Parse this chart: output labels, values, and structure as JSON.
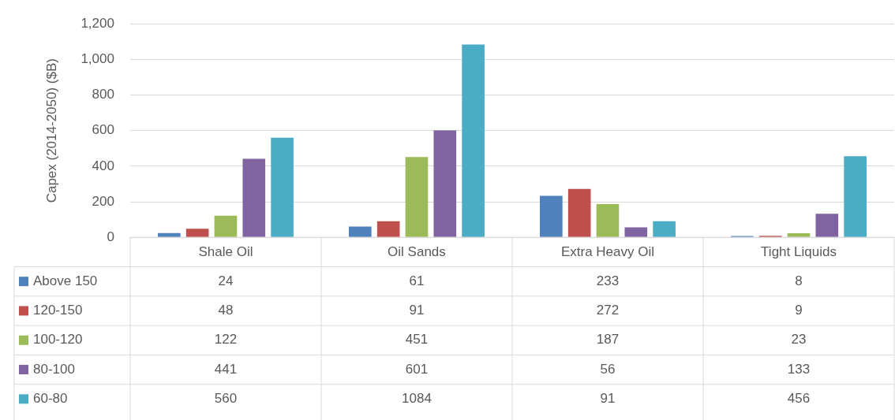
{
  "chart_data": {
    "type": "bar",
    "ylabel": "Capex (2014-2050) ($B)",
    "categories": [
      "Shale Oil",
      "Oil Sands",
      "Extra Heavy Oil",
      "Tight Liquids"
    ],
    "series": [
      {
        "name": "Above 150",
        "color": "#4f81bd",
        "values": [
          24,
          61,
          233,
          8
        ]
      },
      {
        "name": "120-150",
        "color": "#c0504d",
        "values": [
          48,
          91,
          272,
          9
        ]
      },
      {
        "name": "100-120",
        "color": "#9bbb59",
        "values": [
          122,
          451,
          187,
          23
        ]
      },
      {
        "name": "80-100",
        "color": "#8064a2",
        "values": [
          441,
          601,
          56,
          133
        ]
      },
      {
        "name": "60-80",
        "color": "#4bacc6",
        "values": [
          560,
          1084,
          91,
          456
        ]
      }
    ],
    "ylim": [
      0,
      1200
    ],
    "yticks": [
      0,
      200,
      400,
      600,
      800,
      {
        "value": 1000,
        "label": "1,000"
      },
      {
        "value": 1200,
        "label": "1,200"
      }
    ],
    "grid": "y",
    "legend": "bottom",
    "data_labels": true
  }
}
